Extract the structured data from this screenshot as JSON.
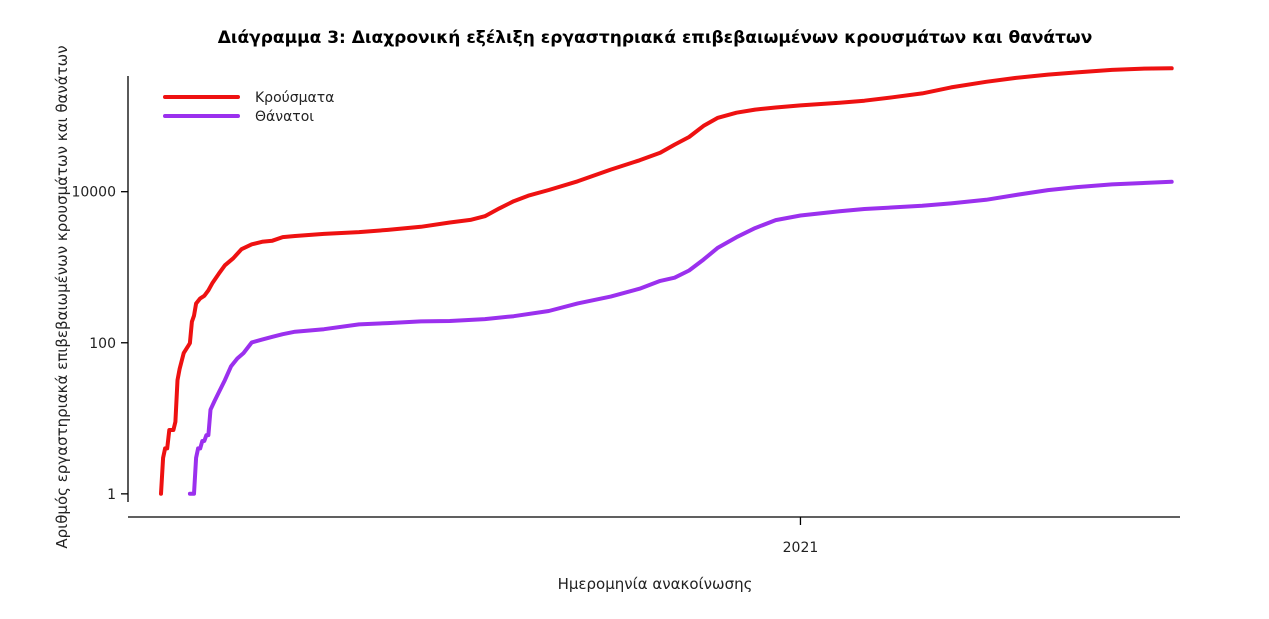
{
  "chart_data": {
    "type": "line",
    "title": "Διάγραμμα 3: Διαχρονική εξέλιξη εργαστηριακά επιβεβαιωμένων κρουσμάτων και θανάτων",
    "xlabel": "Ημερομηνία ανακοίνωσης",
    "ylabel": "Αριθμός εργαστηριακά επιβεβαιωμένων κρουσμάτων και θανάτων",
    "y_scale": "log",
    "ylim": [
      0.78,
      340000
    ],
    "y_ticks": [
      1,
      100,
      10000
    ],
    "y_tick_labels": [
      "1",
      "100",
      "10000"
    ],
    "xlim": [
      "2020-02-10",
      "2021-07-04"
    ],
    "x_ticks": [
      "2021-01-01"
    ],
    "x_tick_labels": [
      "2021"
    ],
    "legend_position": "top-left",
    "grid": false,
    "series": [
      {
        "name": "Κρούσματα",
        "color": "#ee1111",
        "points": [
          [
            "2020-02-26",
            1
          ],
          [
            "2020-02-27",
            3
          ],
          [
            "2020-02-28",
            4
          ],
          [
            "2020-02-29",
            4
          ],
          [
            "2020-03-01",
            7
          ],
          [
            "2020-03-03",
            7
          ],
          [
            "2020-03-04",
            9
          ],
          [
            "2020-03-05",
            32
          ],
          [
            "2020-03-06",
            45
          ],
          [
            "2020-03-08",
            73
          ],
          [
            "2020-03-10",
            89
          ],
          [
            "2020-03-11",
            99
          ],
          [
            "2020-03-12",
            190
          ],
          [
            "2020-03-13",
            228
          ],
          [
            "2020-03-14",
            331
          ],
          [
            "2020-03-16",
            387
          ],
          [
            "2020-03-18",
            418
          ],
          [
            "2020-03-20",
            495
          ],
          [
            "2020-03-22",
            624
          ],
          [
            "2020-03-25",
            821
          ],
          [
            "2020-03-28",
            1061
          ],
          [
            "2020-04-01",
            1314
          ],
          [
            "2020-04-05",
            1735
          ],
          [
            "2020-04-10",
            2011
          ],
          [
            "2020-04-15",
            2170
          ],
          [
            "2020-04-20",
            2245
          ],
          [
            "2020-04-25",
            2506
          ],
          [
            "2020-05-01",
            2591
          ],
          [
            "2020-05-15",
            2760
          ],
          [
            "2020-06-01",
            2917
          ],
          [
            "2020-06-15",
            3121
          ],
          [
            "2020-07-01",
            3432
          ],
          [
            "2020-07-15",
            3910
          ],
          [
            "2020-07-25",
            4227
          ],
          [
            "2020-08-01",
            4737
          ],
          [
            "2020-08-08",
            6000
          ],
          [
            "2020-08-15",
            7472
          ],
          [
            "2020-08-22",
            8860
          ],
          [
            "2020-09-01",
            10524
          ],
          [
            "2020-09-15",
            13730
          ],
          [
            "2020-10-01",
            19613
          ],
          [
            "2020-10-15",
            26000
          ],
          [
            "2020-10-25",
            32700
          ],
          [
            "2020-11-01",
            42000
          ],
          [
            "2020-11-08",
            53000
          ],
          [
            "2020-11-15",
            74205
          ],
          [
            "2020-11-22",
            95137
          ],
          [
            "2020-12-01",
            111000
          ],
          [
            "2020-12-10",
            122000
          ],
          [
            "2020-12-20",
            130000
          ],
          [
            "2021-01-01",
            138850
          ],
          [
            "2021-01-20",
            150000
          ],
          [
            "2021-02-01",
            160000
          ],
          [
            "2021-02-15",
            178000
          ],
          [
            "2021-03-01",
            200000
          ],
          [
            "2021-03-15",
            240000
          ],
          [
            "2021-04-01",
            285000
          ],
          [
            "2021-04-15",
            320000
          ],
          [
            "2021-05-01",
            355000
          ],
          [
            "2021-05-15",
            380000
          ],
          [
            "2021-06-01",
            410000
          ],
          [
            "2021-06-15",
            425000
          ],
          [
            "2021-06-30",
            430000
          ]
        ]
      },
      {
        "name": "Θάνατοι",
        "color": "#9b30ee",
        "points": [
          [
            "2020-03-11",
            1
          ],
          [
            "2020-03-12",
            1
          ],
          [
            "2020-03-13",
            1
          ],
          [
            "2020-03-14",
            3
          ],
          [
            "2020-03-15",
            4
          ],
          [
            "2020-03-16",
            4
          ],
          [
            "2020-03-17",
            5
          ],
          [
            "2020-03-18",
            5
          ],
          [
            "2020-03-19",
            6
          ],
          [
            "2020-03-20",
            6
          ],
          [
            "2020-03-21",
            13
          ],
          [
            "2020-03-23",
            17
          ],
          [
            "2020-03-25",
            22
          ],
          [
            "2020-03-28",
            32
          ],
          [
            "2020-03-31",
            49
          ],
          [
            "2020-04-03",
            62
          ],
          [
            "2020-04-06",
            73
          ],
          [
            "2020-04-10",
            101
          ],
          [
            "2020-04-15",
            110
          ],
          [
            "2020-04-20",
            120
          ],
          [
            "2020-04-25",
            130
          ],
          [
            "2020-05-01",
            140
          ],
          [
            "2020-05-15",
            151
          ],
          [
            "2020-06-01",
            175
          ],
          [
            "2020-06-15",
            182
          ],
          [
            "2020-07-01",
            192
          ],
          [
            "2020-07-15",
            194
          ],
          [
            "2020-08-01",
            206
          ],
          [
            "2020-08-15",
            225
          ],
          [
            "2020-09-01",
            263
          ],
          [
            "2020-09-15",
            332
          ],
          [
            "2020-10-01",
            409
          ],
          [
            "2020-10-15",
            520
          ],
          [
            "2020-10-25",
            660
          ],
          [
            "2020-11-01",
            726
          ],
          [
            "2020-11-08",
            905
          ],
          [
            "2020-11-15",
            1260
          ],
          [
            "2020-11-22",
            1812
          ],
          [
            "2020-12-01",
            2500
          ],
          [
            "2020-12-10",
            3300
          ],
          [
            "2020-12-20",
            4200
          ],
          [
            "2021-01-01",
            4838
          ],
          [
            "2021-01-20",
            5500
          ],
          [
            "2021-02-01",
            5900
          ],
          [
            "2021-02-15",
            6200
          ],
          [
            "2021-03-01",
            6500
          ],
          [
            "2021-03-15",
            7000
          ],
          [
            "2021-04-01",
            7800
          ],
          [
            "2021-04-15",
            9000
          ],
          [
            "2021-05-01",
            10500
          ],
          [
            "2021-05-15",
            11500
          ],
          [
            "2021-06-01",
            12500
          ],
          [
            "2021-06-15",
            13000
          ],
          [
            "2021-06-30",
            13500
          ]
        ]
      }
    ]
  }
}
